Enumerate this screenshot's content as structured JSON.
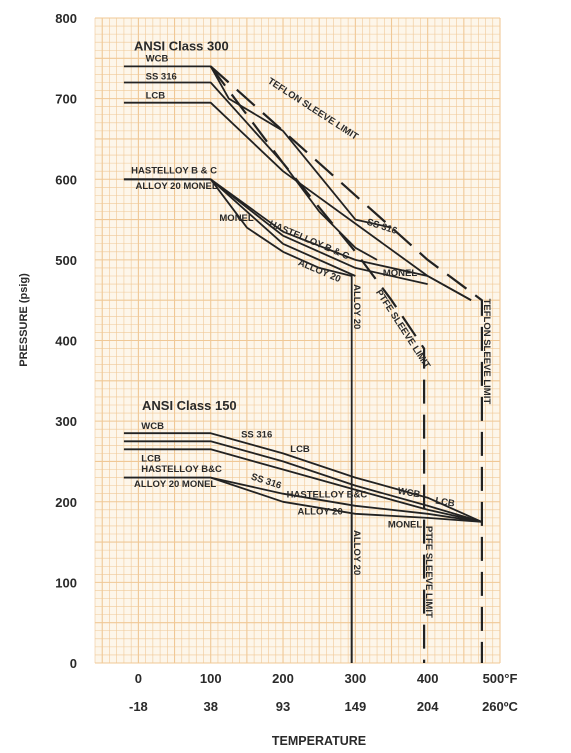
{
  "chart_data": {
    "type": "line",
    "title": "",
    "xlabel": "TEMPERATURE",
    "ylabel": "PRESSURE (psig)",
    "xlim": [
      -60,
      500
    ],
    "ylim": [
      0,
      800
    ],
    "x_unit": "°F",
    "y_ticks": [
      "0",
      "100",
      "200",
      "300",
      "400",
      "500",
      "600",
      "700",
      "800"
    ],
    "x_ticks_f": [
      {
        "x": 0,
        "label": "0"
      },
      {
        "x": 100,
        "label": "100"
      },
      {
        "x": 200,
        "label": "200"
      },
      {
        "x": 300,
        "label": "300"
      },
      {
        "x": 400,
        "label": "400"
      },
      {
        "x": 500,
        "label": "500°F"
      }
    ],
    "x_ticks_c": [
      {
        "x": 0,
        "label": "-18"
      },
      {
        "x": 100,
        "label": "38"
      },
      {
        "x": 200,
        "label": "93"
      },
      {
        "x": 300,
        "label": "149"
      },
      {
        "x": 400,
        "label": "204"
      },
      {
        "x": 500,
        "label": "260ºC"
      }
    ],
    "grid": true,
    "class_labels": [
      {
        "text": "ANSI Class 300",
        "x": -6,
        "y": 760
      },
      {
        "text": "ANSI Class 150",
        "x": 5,
        "y": 314
      }
    ],
    "series": [
      {
        "name": "WCB",
        "class": "300",
        "style": "solid",
        "x": [
          -20,
          100,
          125,
          200,
          300,
          350
        ],
        "y": [
          740,
          740,
          700,
          660,
          550,
          540
        ]
      },
      {
        "name": "SS 316",
        "class": "300",
        "style": "solid",
        "x": [
          -20,
          100,
          150,
          200,
          250,
          300,
          330
        ],
        "y": [
          720,
          720,
          670,
          620,
          560,
          515,
          500
        ]
      },
      {
        "name": "LCB",
        "class": "300",
        "style": "solid",
        "x": [
          -20,
          100,
          200,
          400,
          460
        ],
        "y": [
          695,
          695,
          610,
          480,
          450
        ]
      },
      {
        "name": "HASTELLOY B & C",
        "class": "300",
        "style": "solid",
        "x": [
          -20,
          100,
          200,
          300,
          400,
          460
        ],
        "y": [
          600,
          600,
          535,
          500,
          480,
          450
        ]
      },
      {
        "name": "ALLOY 20 MONEL",
        "class": "300",
        "style": "solid",
        "x": [
          -20,
          100,
          200,
          300
        ],
        "y": [
          600,
          600,
          520,
          480
        ]
      },
      {
        "name": "MONEL",
        "class": "300",
        "style": "solid",
        "x": [
          100,
          200,
          300,
          400
        ],
        "y": [
          600,
          530,
          490,
          470
        ]
      },
      {
        "name": "ALLOY 20",
        "class": "300",
        "style": "solid",
        "x": [
          100,
          150,
          200,
          250,
          295,
          295
        ],
        "y": [
          600,
          540,
          510,
          490,
          480,
          0
        ]
      },
      {
        "name": "TEFLON SLEEVE LIMIT",
        "class": "300",
        "style": "dashed",
        "x": [
          100,
          200,
          300,
          400,
          475,
          475
        ],
        "y": [
          740,
          660,
          580,
          500,
          450,
          0
        ]
      },
      {
        "name": "PTFE SLEEVE LIMIT",
        "class": "300",
        "style": "dashed",
        "x": [
          100,
          200,
          300,
          350,
          395,
          395
        ],
        "y": [
          740,
          620,
          510,
          450,
          390,
          0
        ]
      },
      {
        "name": "WCB",
        "class": "150",
        "style": "solid",
        "x": [
          -20,
          100,
          200,
          300,
          400,
          475
        ],
        "y": [
          285,
          285,
          260,
          230,
          205,
          175
        ]
      },
      {
        "name": "SS 316",
        "class": "150",
        "style": "solid",
        "x": [
          -20,
          100,
          200,
          300,
          400,
          475
        ],
        "y": [
          275,
          275,
          250,
          220,
          195,
          175
        ]
      },
      {
        "name": "LCB",
        "class": "150",
        "style": "solid",
        "x": [
          -20,
          100,
          200,
          300,
          400,
          475
        ],
        "y": [
          265,
          265,
          240,
          215,
          190,
          175
        ]
      },
      {
        "name": "HASTELLOY B&C",
        "class": "150",
        "style": "solid",
        "x": [
          -20,
          100,
          200,
          300,
          400,
          475
        ],
        "y": [
          230,
          230,
          210,
          195,
          185,
          175
        ]
      },
      {
        "name": "ALLOY 20 MONEL",
        "class": "150",
        "style": "solid",
        "x": [
          -20,
          100,
          200,
          300,
          400,
          475
        ],
        "y": [
          230,
          230,
          200,
          185,
          180,
          175
        ]
      },
      {
        "name": "ALLOY 20",
        "class": "150",
        "style": "solid",
        "x": [
          295,
          295
        ],
        "y": [
          185,
          0
        ]
      }
    ],
    "annotations": [
      {
        "text": "WCB",
        "x": 10,
        "y": 746,
        "rotate": 0
      },
      {
        "text": "SS 316",
        "x": 10,
        "y": 724,
        "rotate": 0
      },
      {
        "text": "LCB",
        "x": 10,
        "y": 700,
        "rotate": 0
      },
      {
        "text": "HASTELLOY B & C",
        "x": -10,
        "y": 607,
        "rotate": 0
      },
      {
        "text": "ALLOY 20 MONEL",
        "x": -4,
        "y": 588,
        "rotate": 0
      },
      {
        "text": "MONEL",
        "x": 112,
        "y": 548,
        "rotate": 0
      },
      {
        "text": "HASTELLOY B & C",
        "x": 180,
        "y": 542,
        "rotate": 23
      },
      {
        "text": "ALLOY 20",
        "x": 220,
        "y": 494,
        "rotate": 23
      },
      {
        "text": "MONEL",
        "x": 338,
        "y": 480,
        "rotate": 0
      },
      {
        "text": "ALLOY 20",
        "x": 298,
        "y": 470,
        "rotate": 90
      },
      {
        "text": "TEFLON SLEEVE LIMIT",
        "x": 178,
        "y": 720,
        "rotate": 33
      },
      {
        "text": "SS 316",
        "x": 315,
        "y": 544,
        "rotate": 18
      },
      {
        "text": "PTFE SLEEVE LIMIT",
        "x": 328,
        "y": 460,
        "rotate": 57
      },
      {
        "text": "TEFLON SLEEVE LIMIT",
        "x": 478,
        "y": 452,
        "rotate": 90
      },
      {
        "text": "WCB",
        "x": 4,
        "y": 290,
        "rotate": 0
      },
      {
        "text": "SS 316",
        "x": 142,
        "y": 280,
        "rotate": 0
      },
      {
        "text": "LCB",
        "x": 210,
        "y": 262,
        "rotate": 0
      },
      {
        "text": "LCB",
        "x": 4,
        "y": 250,
        "rotate": 0
      },
      {
        "text": "HASTELLOY B&C",
        "x": 4,
        "y": 237,
        "rotate": 0
      },
      {
        "text": "SS 316",
        "x": 155,
        "y": 228,
        "rotate": 18
      },
      {
        "text": "HASTELLOY B&C",
        "x": 205,
        "y": 205,
        "rotate": 0
      },
      {
        "text": "WCB",
        "x": 358,
        "y": 210,
        "rotate": 10
      },
      {
        "text": "LCB",
        "x": 410,
        "y": 198,
        "rotate": 10
      },
      {
        "text": "ALLOY 20 MONEL",
        "x": -6,
        "y": 218,
        "rotate": 0
      },
      {
        "text": "ALLOY 20",
        "x": 220,
        "y": 184,
        "rotate": 0
      },
      {
        "text": "MONEL",
        "x": 345,
        "y": 168,
        "rotate": 0
      },
      {
        "text": "ALLOY 20",
        "x": 298,
        "y": 165,
        "rotate": 90
      },
      {
        "text": "PTFE SLEEVE LIMIT",
        "x": 398,
        "y": 170,
        "rotate": 90
      }
    ],
    "colors": {
      "background": "#fdf6ea",
      "grid": "#f0c896",
      "line": "#222222",
      "text": "#2a2a2a"
    }
  }
}
